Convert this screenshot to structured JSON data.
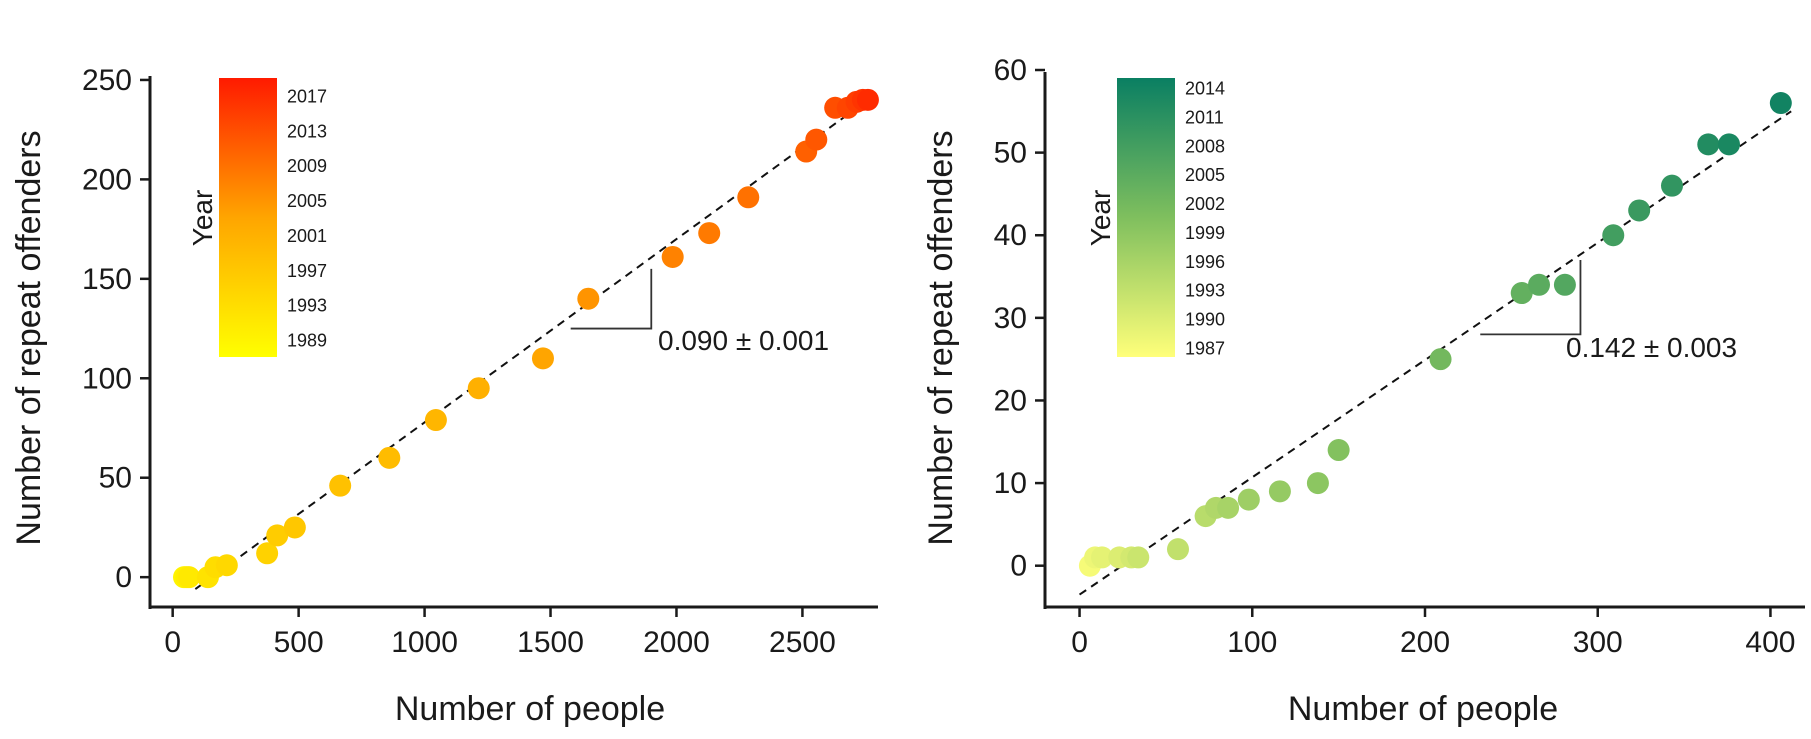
{
  "chart_data": [
    {
      "type": "scatter",
      "title": "",
      "xlabel": "Number of people",
      "ylabel": "Number of repeat offenders",
      "xlim": [
        -90,
        2800
      ],
      "ylim": [
        -15,
        255
      ],
      "xticks": [
        0,
        500,
        1000,
        1500,
        2000,
        2500
      ],
      "yticks": [
        0,
        50,
        100,
        150,
        200,
        250
      ],
      "grid": false,
      "annotation": "0.090 ± 0.001",
      "fit_line": {
        "from": [
          90,
          -6
        ],
        "to": [
          2760,
          240
        ],
        "style": "dashed"
      },
      "slope_marker": {
        "x0": 1580,
        "x1": 1900,
        "y_low": 125,
        "y_high": 155
      },
      "colorbar": {
        "label": "Year",
        "range": [
          1987,
          2019
        ],
        "ticks": [
          "2017",
          "2013",
          "2009",
          "2005",
          "2001",
          "1997",
          "1993",
          "1989"
        ],
        "tick_values": [
          2017,
          2013,
          2009,
          2005,
          2001,
          1997,
          1993,
          1989
        ],
        "colors": [
          "#ffff00",
          "#ffa500",
          "#ff1a00"
        ]
      },
      "points": [
        {
          "x": 45,
          "y": 0,
          "year": 1989
        },
        {
          "x": 55,
          "y": 0,
          "year": 1990
        },
        {
          "x": 65,
          "y": 0,
          "year": 1991
        },
        {
          "x": 140,
          "y": 0,
          "year": 1992
        },
        {
          "x": 170,
          "y": 5,
          "year": 1993
        },
        {
          "x": 215,
          "y": 6,
          "year": 1994
        },
        {
          "x": 375,
          "y": 12,
          "year": 1995
        },
        {
          "x": 415,
          "y": 21,
          "year": 1996
        },
        {
          "x": 485,
          "y": 25,
          "year": 1997
        },
        {
          "x": 665,
          "y": 46,
          "year": 1998
        },
        {
          "x": 860,
          "y": 60,
          "year": 1999
        },
        {
          "x": 1045,
          "y": 79,
          "year": 2000
        },
        {
          "x": 1215,
          "y": 95,
          "year": 2001
        },
        {
          "x": 1470,
          "y": 110,
          "year": 2003
        },
        {
          "x": 1650,
          "y": 140,
          "year": 2005
        },
        {
          "x": 1985,
          "y": 161,
          "year": 2007
        },
        {
          "x": 2130,
          "y": 173,
          "year": 2008
        },
        {
          "x": 2285,
          "y": 191,
          "year": 2009
        },
        {
          "x": 2515,
          "y": 214,
          "year": 2011
        },
        {
          "x": 2555,
          "y": 220,
          "year": 2012
        },
        {
          "x": 2630,
          "y": 236,
          "year": 2013
        },
        {
          "x": 2680,
          "y": 236,
          "year": 2014
        },
        {
          "x": 2715,
          "y": 239,
          "year": 2015
        },
        {
          "x": 2740,
          "y": 240,
          "year": 2016
        },
        {
          "x": 2760,
          "y": 240,
          "year": 2017
        }
      ]
    },
    {
      "type": "scatter",
      "title": "",
      "xlabel": "Number of people",
      "ylabel": "Number of repeat offenders",
      "xlim": [
        -20,
        420
      ],
      "ylim": [
        -5,
        60
      ],
      "xticks": [
        0,
        100,
        200,
        300,
        400
      ],
      "yticks": [
        0,
        10,
        20,
        30,
        40,
        50,
        60
      ],
      "grid": false,
      "annotation": "0.142 ± 0.003",
      "fit_line": {
        "from": [
          0,
          -3.5
        ],
        "to": [
          412,
          55
        ],
        "style": "dashed"
      },
      "slope_marker": {
        "x0": 232,
        "x1": 290,
        "y_low": 28,
        "y_high": 37
      },
      "colorbar": {
        "label": "Year",
        "range": [
          1986,
          2015
        ],
        "ticks": [
          "2014",
          "2011",
          "2008",
          "2005",
          "2002",
          "1999",
          "1996",
          "1993",
          "1990",
          "1987"
        ],
        "tick_values": [
          2014,
          2011,
          2008,
          2005,
          2002,
          1999,
          1996,
          1993,
          1990,
          1987
        ],
        "colors": [
          "#ffff7a",
          "#7fbf5e",
          "#0a7f62"
        ]
      },
      "points": [
        {
          "x": 6,
          "y": 0,
          "year": 1987
        },
        {
          "x": 9,
          "y": 1,
          "year": 1988
        },
        {
          "x": 13,
          "y": 1,
          "year": 1989
        },
        {
          "x": 23,
          "y": 1,
          "year": 1990
        },
        {
          "x": 30,
          "y": 1,
          "year": 1991
        },
        {
          "x": 34,
          "y": 1,
          "year": 1992
        },
        {
          "x": 57,
          "y": 2,
          "year": 1993
        },
        {
          "x": 73,
          "y": 6,
          "year": 1994
        },
        {
          "x": 79,
          "y": 7,
          "year": 1995
        },
        {
          "x": 86,
          "y": 7,
          "year": 1996
        },
        {
          "x": 98,
          "y": 8,
          "year": 1997
        },
        {
          "x": 116,
          "y": 9,
          "year": 1998
        },
        {
          "x": 138,
          "y": 10,
          "year": 1999
        },
        {
          "x": 150,
          "y": 14,
          "year": 2000
        },
        {
          "x": 209,
          "y": 25,
          "year": 2002
        },
        {
          "x": 256,
          "y": 33,
          "year": 2004
        },
        {
          "x": 266,
          "y": 34,
          "year": 2005
        },
        {
          "x": 281,
          "y": 34,
          "year": 2006
        },
        {
          "x": 309,
          "y": 40,
          "year": 2008
        },
        {
          "x": 324,
          "y": 43,
          "year": 2009
        },
        {
          "x": 343,
          "y": 46,
          "year": 2010
        },
        {
          "x": 364,
          "y": 51,
          "year": 2012
        },
        {
          "x": 376,
          "y": 51,
          "year": 2013
        },
        {
          "x": 406,
          "y": 56,
          "year": 2014
        }
      ]
    }
  ]
}
